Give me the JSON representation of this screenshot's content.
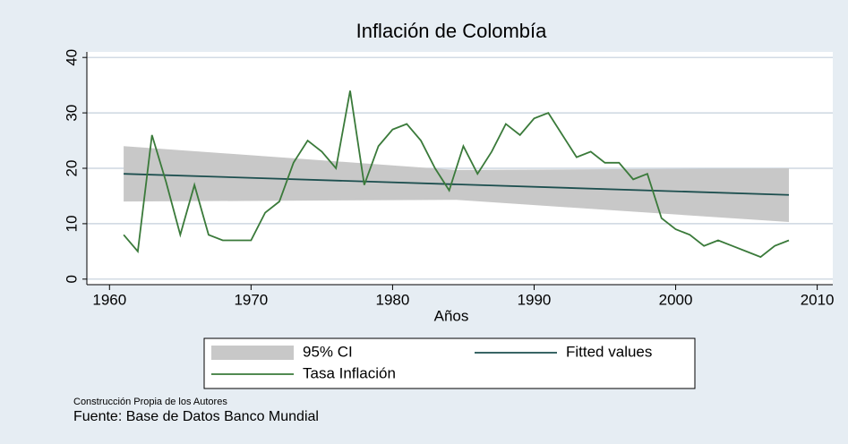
{
  "chart_data": {
    "type": "line",
    "title": "Inflación de Colombía",
    "x_label": "Años",
    "xlim": [
      1958.4,
      2011.1
    ],
    "xticks": [
      1960,
      1970,
      1980,
      1990,
      2000,
      2010
    ],
    "ylim": [
      -1,
      41
    ],
    "yticks": [
      0,
      10,
      20,
      30,
      40
    ],
    "grid": true,
    "series": [
      {
        "name": "95% CI",
        "color": "#c8c8c8",
        "x": [
          1961,
          1984.5,
          2008
        ],
        "upper": [
          24,
          19.7,
          20
        ],
        "lower": [
          14,
          14.3,
          10.3
        ]
      },
      {
        "name": "Fitted values",
        "color": "#1d4f4f",
        "x": [
          1961,
          2008
        ],
        "values": [
          19,
          15.2
        ]
      },
      {
        "name": "Tasa Inflación",
        "color": "#3a7a3a",
        "x": [
          1961,
          1962,
          1963,
          1964,
          1965,
          1966,
          1967,
          1968,
          1969,
          1970,
          1971,
          1972,
          1973,
          1974,
          1975,
          1976,
          1977,
          1978,
          1979,
          1980,
          1981,
          1982,
          1983,
          1984,
          1985,
          1986,
          1987,
          1988,
          1989,
          1990,
          1991,
          1992,
          1993,
          1994,
          1995,
          1996,
          1997,
          1998,
          1999,
          2000,
          2001,
          2002,
          2003,
          2004,
          2005,
          2006,
          2007,
          2008
        ],
        "values": [
          8,
          5,
          26,
          17.5,
          8,
          17,
          8,
          7,
          7,
          7,
          12,
          14,
          21,
          25,
          23,
          20,
          34,
          17,
          24,
          27,
          28,
          25,
          20,
          16,
          24,
          19,
          23,
          28,
          26,
          29,
          30,
          26,
          22,
          23,
          21,
          21,
          18,
          19,
          11,
          9,
          8,
          6,
          7,
          6,
          5,
          4,
          6,
          7
        ]
      }
    ],
    "notes": [
      "Construcción Propia de los Autores",
      "Fuente: Base de Datos Banco Mundial"
    ]
  }
}
